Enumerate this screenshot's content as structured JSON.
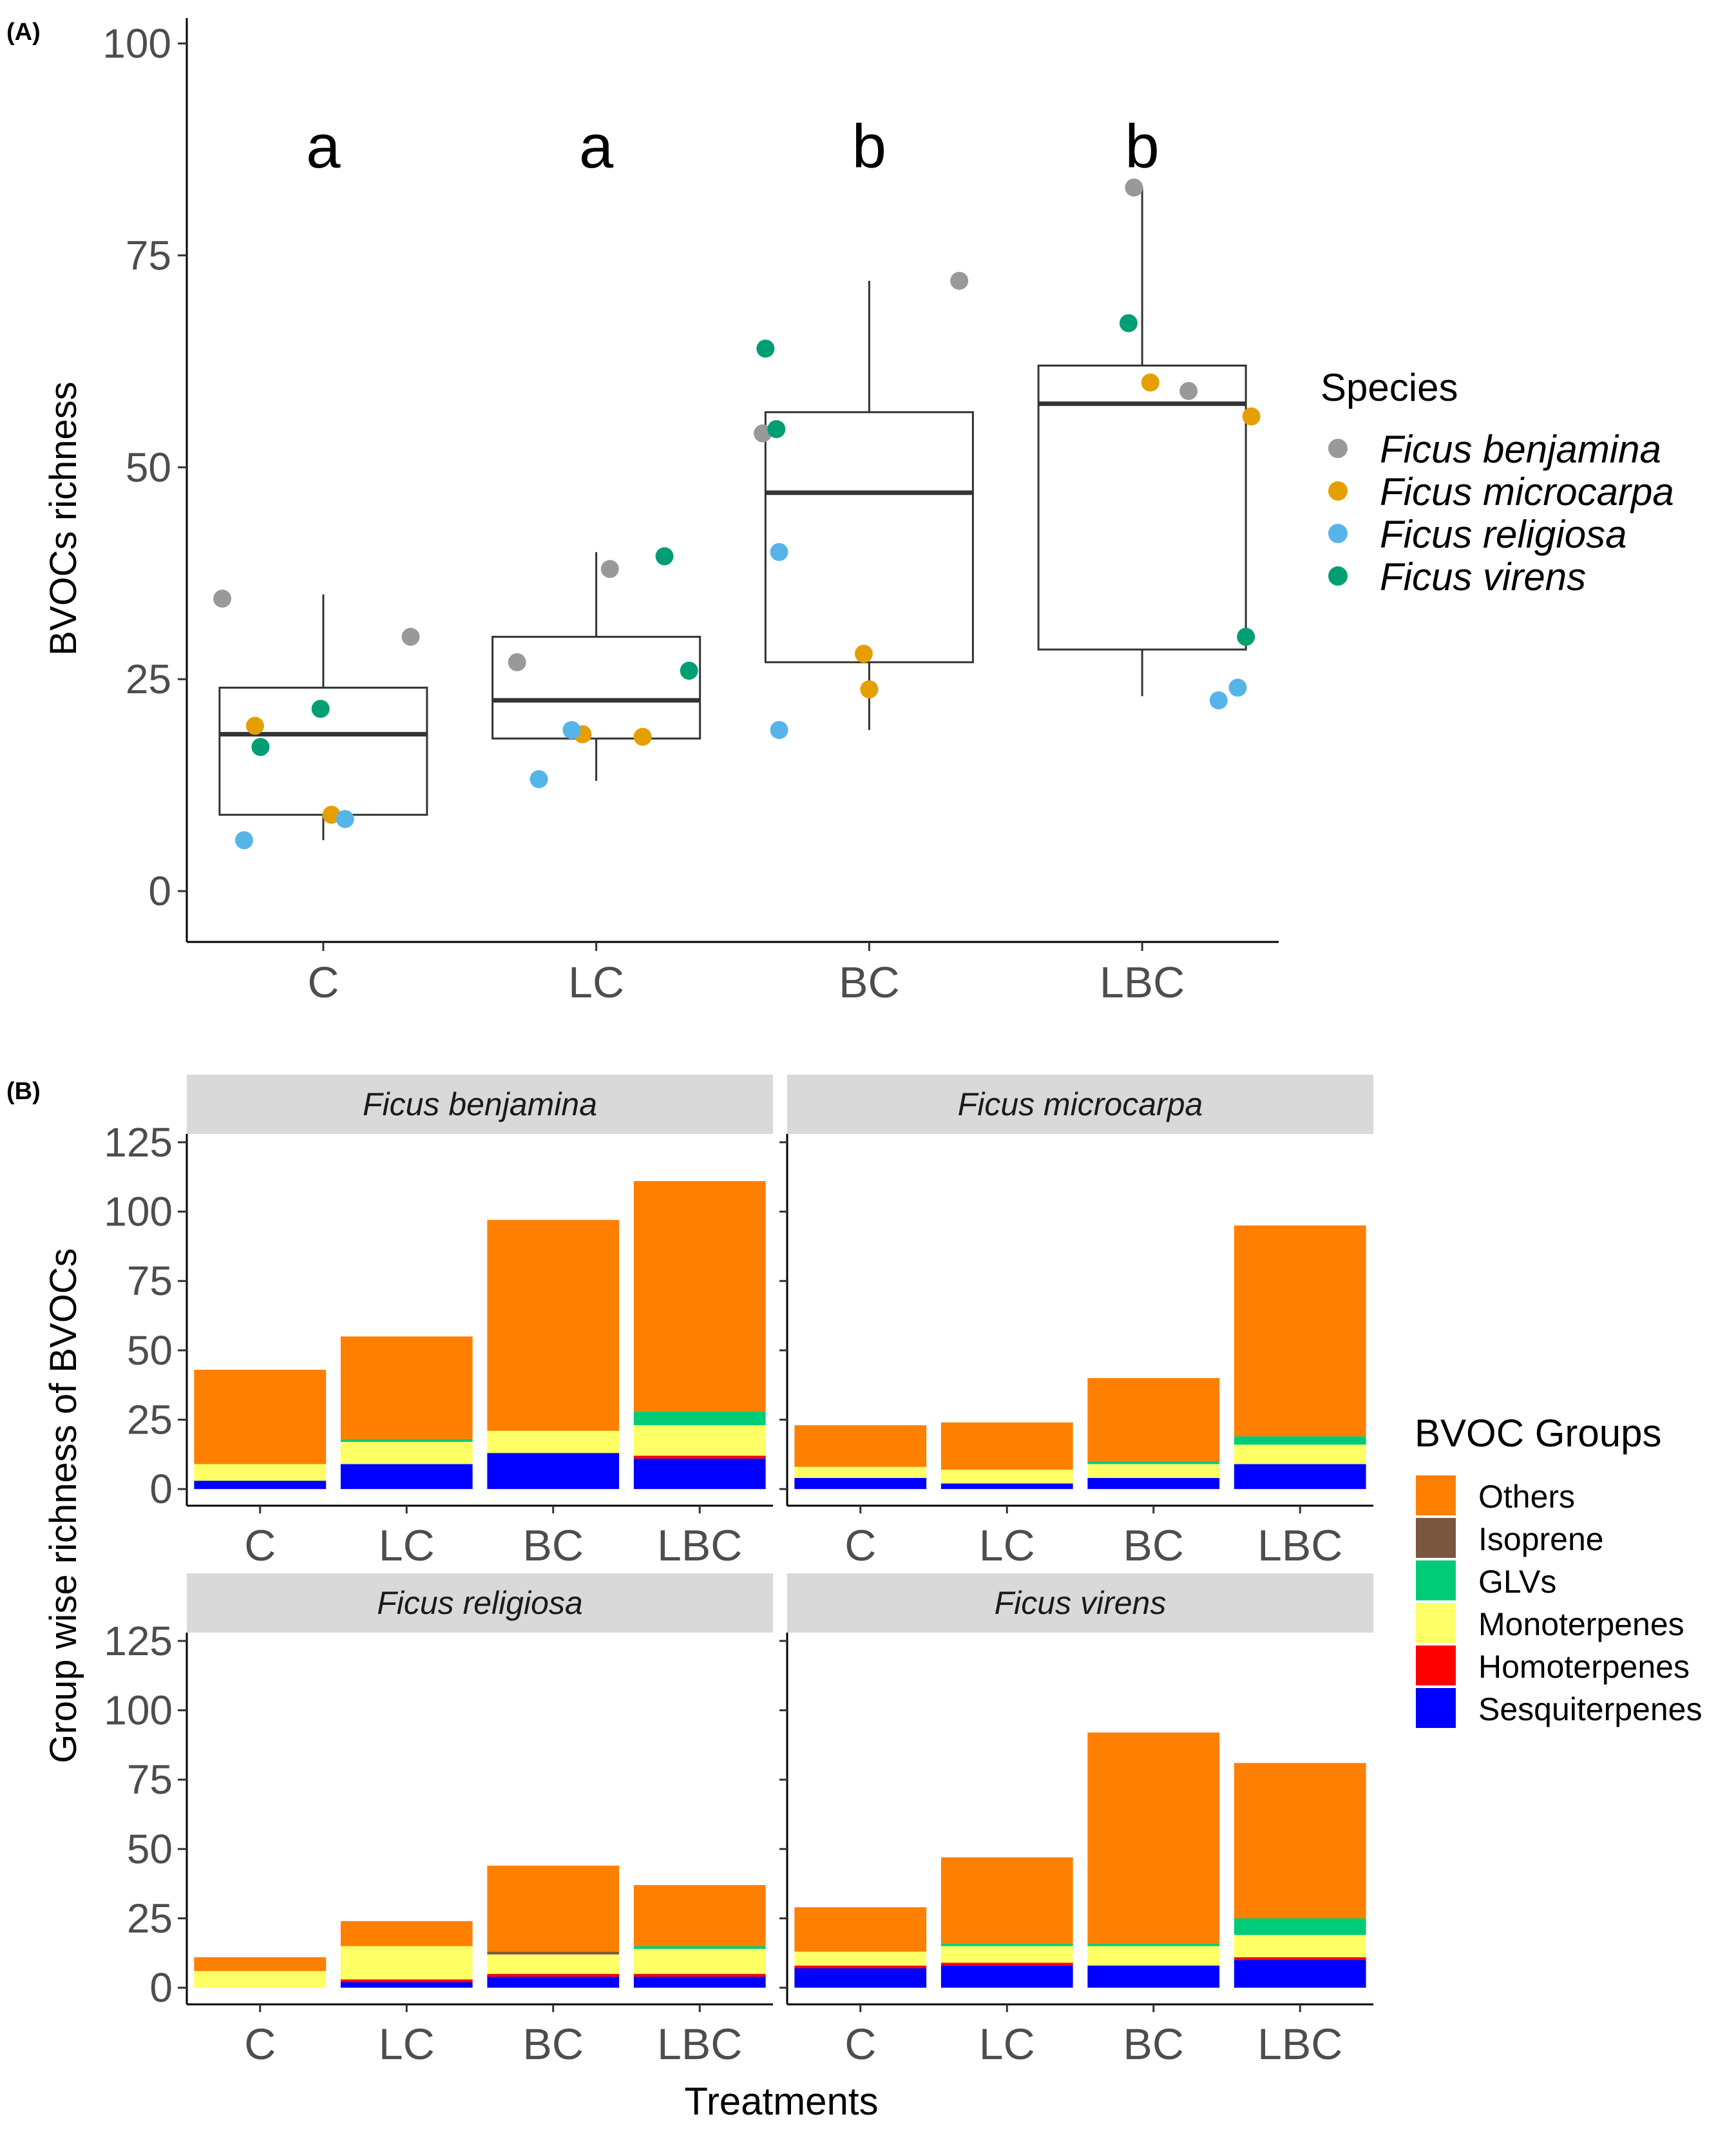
{
  "figure": {
    "panel_a_label": "(A)",
    "panel_b_label": "(B)"
  },
  "colors": {
    "species": {
      "Ficus benjamina": "#999999",
      "Ficus microcarpa": "#E69F00",
      "Ficus religiosa": "#56B4E9",
      "Ficus virens": "#009E73"
    },
    "groups": {
      "Others": "#FF7F00",
      "Isoprene": "#7B5640",
      "GLVs": "#00CC77",
      "Monoterpenes": "#FFFF66",
      "Homoterpenes": "#FF0000",
      "Sesquiterpenes": "#0000FF"
    },
    "strip_background": "#D9D9D9",
    "box_line": "#333333"
  },
  "chart_data": [
    {
      "type": "boxplot",
      "panel": "(A)",
      "title": "",
      "xlabel": "",
      "ylabel": "BVOCs richness",
      "categories": [
        "C",
        "LC",
        "BC",
        "LBC"
      ],
      "ylim": [
        -6,
        103
      ],
      "yticks": [
        0,
        25,
        50,
        75,
        100
      ],
      "significance_letters": [
        "a",
        "a",
        "b",
        "b"
      ],
      "boxes": [
        {
          "category": "C",
          "whisker_low": 6,
          "q1": 9,
          "median": 18.5,
          "q3": 24,
          "whisker_high": 35
        },
        {
          "category": "LC",
          "whisker_low": 13,
          "q1": 18,
          "median": 22.5,
          "q3": 30,
          "whisker_high": 40
        },
        {
          "category": "BC",
          "whisker_low": 19,
          "q1": 27,
          "median": 47,
          "q3": 56.5,
          "whisker_high": 72
        },
        {
          "category": "LBC",
          "whisker_low": 23,
          "q1": 28.5,
          "median": 57.5,
          "q3": 62,
          "whisker_high": 83
        }
      ],
      "legend_title": "Species",
      "legend": [
        "Ficus benjamina",
        "Ficus microcarpa",
        "Ficus religiosa",
        "Ficus virens"
      ],
      "points": [
        {
          "category": "C",
          "species": "Ficus benjamina",
          "y": 34.5,
          "jitter": -0.37
        },
        {
          "category": "C",
          "species": "Ficus benjamina",
          "y": 30,
          "jitter": 0.32
        },
        {
          "category": "C",
          "species": "Ficus microcarpa",
          "y": 19.5,
          "jitter": -0.25
        },
        {
          "category": "C",
          "species": "Ficus microcarpa",
          "y": 9,
          "jitter": 0.03
        },
        {
          "category": "C",
          "species": "Ficus religiosa",
          "y": 6,
          "jitter": -0.29
        },
        {
          "category": "C",
          "species": "Ficus religiosa",
          "y": 8.5,
          "jitter": 0.08
        },
        {
          "category": "C",
          "species": "Ficus virens",
          "y": 21.5,
          "jitter": -0.01
        },
        {
          "category": "C",
          "species": "Ficus virens",
          "y": 17,
          "jitter": -0.23
        },
        {
          "category": "LC",
          "species": "Ficus benjamina",
          "y": 38,
          "jitter": 0.05
        },
        {
          "category": "LC",
          "species": "Ficus benjamina",
          "y": 27,
          "jitter": -0.29
        },
        {
          "category": "LC",
          "species": "Ficus microcarpa",
          "y": 18.5,
          "jitter": -0.05
        },
        {
          "category": "LC",
          "species": "Ficus microcarpa",
          "y": 18.2,
          "jitter": 0.17
        },
        {
          "category": "LC",
          "species": "Ficus religiosa",
          "y": 19,
          "jitter": -0.09
        },
        {
          "category": "LC",
          "species": "Ficus religiosa",
          "y": 13.2,
          "jitter": -0.21
        },
        {
          "category": "LC",
          "species": "Ficus virens",
          "y": 39.5,
          "jitter": 0.25
        },
        {
          "category": "LC",
          "species": "Ficus virens",
          "y": 26,
          "jitter": 0.34
        },
        {
          "category": "BC",
          "species": "Ficus benjamina",
          "y": 72,
          "jitter": 0.33
        },
        {
          "category": "BC",
          "species": "Ficus benjamina",
          "y": 54,
          "jitter": -0.39
        },
        {
          "category": "BC",
          "species": "Ficus microcarpa",
          "y": 28,
          "jitter": -0.02
        },
        {
          "category": "BC",
          "species": "Ficus microcarpa",
          "y": 23.8,
          "jitter": 0.0
        },
        {
          "category": "BC",
          "species": "Ficus religiosa",
          "y": 40,
          "jitter": -0.33
        },
        {
          "category": "BC",
          "species": "Ficus religiosa",
          "y": 19,
          "jitter": -0.33
        },
        {
          "category": "BC",
          "species": "Ficus virens",
          "y": 64,
          "jitter": -0.38
        },
        {
          "category": "BC",
          "species": "Ficus virens",
          "y": 54.5,
          "jitter": -0.34
        },
        {
          "category": "LBC",
          "species": "Ficus benjamina",
          "y": 83,
          "jitter": -0.03
        },
        {
          "category": "LBC",
          "species": "Ficus benjamina",
          "y": 59,
          "jitter": 0.17
        },
        {
          "category": "LBC",
          "species": "Ficus microcarpa",
          "y": 60,
          "jitter": 0.03
        },
        {
          "category": "LBC",
          "species": "Ficus microcarpa",
          "y": 56,
          "jitter": 0.4
        },
        {
          "category": "LBC",
          "species": "Ficus religiosa",
          "y": 22.5,
          "jitter": 0.28
        },
        {
          "category": "LBC",
          "species": "Ficus religiosa",
          "y": 24,
          "jitter": 0.35
        },
        {
          "category": "LBC",
          "species": "Ficus virens",
          "y": 67,
          "jitter": -0.05
        },
        {
          "category": "LBC",
          "species": "Ficus virens",
          "y": 30,
          "jitter": 0.38
        }
      ]
    },
    {
      "type": "bar",
      "stacked": true,
      "faceted": true,
      "panel": "(B)",
      "title": "",
      "xlabel": "Treatments",
      "ylabel": "Group wise richness of BVOCs",
      "categories": [
        "C",
        "LC",
        "BC",
        "LBC"
      ],
      "ylim": [
        -6,
        128
      ],
      "yticks": [
        0,
        25,
        50,
        75,
        100,
        125
      ],
      "legend_title": "BVOC Groups",
      "legend": [
        "Others",
        "Isoprene",
        "GLVs",
        "Monoterpenes",
        "Homoterpenes",
        "Sesquiterpenes"
      ],
      "stack_order": [
        "Sesquiterpenes",
        "Homoterpenes",
        "Monoterpenes",
        "GLVs",
        "Isoprene",
        "Others"
      ],
      "facets": [
        {
          "title": "Ficus benjamina",
          "series": [
            {
              "name": "Sesquiterpenes",
              "values": [
                3,
                9,
                13,
                11
              ]
            },
            {
              "name": "Homoterpenes",
              "values": [
                0,
                0,
                0,
                1
              ]
            },
            {
              "name": "Monoterpenes",
              "values": [
                6,
                8,
                8,
                11
              ]
            },
            {
              "name": "GLVs",
              "values": [
                0,
                1,
                0,
                5
              ]
            },
            {
              "name": "Isoprene",
              "values": [
                0,
                0,
                0,
                0
              ]
            },
            {
              "name": "Others",
              "values": [
                34,
                37,
                76,
                83
              ]
            }
          ]
        },
        {
          "title": "Ficus microcarpa",
          "series": [
            {
              "name": "Sesquiterpenes",
              "values": [
                4,
                2,
                4,
                9
              ]
            },
            {
              "name": "Homoterpenes",
              "values": [
                0,
                0,
                0,
                0
              ]
            },
            {
              "name": "Monoterpenes",
              "values": [
                4,
                5,
                5,
                7
              ]
            },
            {
              "name": "GLVs",
              "values": [
                0,
                0,
                1,
                3
              ]
            },
            {
              "name": "Isoprene",
              "values": [
                0,
                0,
                0,
                0
              ]
            },
            {
              "name": "Others",
              "values": [
                15,
                17,
                30,
                76
              ]
            }
          ]
        },
        {
          "title": "Ficus religiosa",
          "series": [
            {
              "name": "Sesquiterpenes",
              "values": [
                0,
                2,
                4,
                4
              ]
            },
            {
              "name": "Homoterpenes",
              "values": [
                0,
                1,
                1,
                1
              ]
            },
            {
              "name": "Monoterpenes",
              "values": [
                6,
                12,
                7,
                9
              ]
            },
            {
              "name": "GLVs",
              "values": [
                0,
                0,
                0,
                1
              ]
            },
            {
              "name": "Isoprene",
              "values": [
                0,
                0,
                1,
                0
              ]
            },
            {
              "name": "Others",
              "values": [
                5,
                9,
                31,
                22
              ]
            }
          ]
        },
        {
          "title": "Ficus virens",
          "series": [
            {
              "name": "Sesquiterpenes",
              "values": [
                7,
                8,
                8,
                10
              ]
            },
            {
              "name": "Homoterpenes",
              "values": [
                1,
                1,
                0,
                1
              ]
            },
            {
              "name": "Monoterpenes",
              "values": [
                5,
                6,
                7,
                8
              ]
            },
            {
              "name": "GLVs",
              "values": [
                0,
                1,
                1,
                6
              ]
            },
            {
              "name": "Isoprene",
              "values": [
                0,
                0,
                0,
                0
              ]
            },
            {
              "name": "Others",
              "values": [
                16,
                31,
                76,
                56
              ]
            }
          ]
        }
      ]
    }
  ]
}
